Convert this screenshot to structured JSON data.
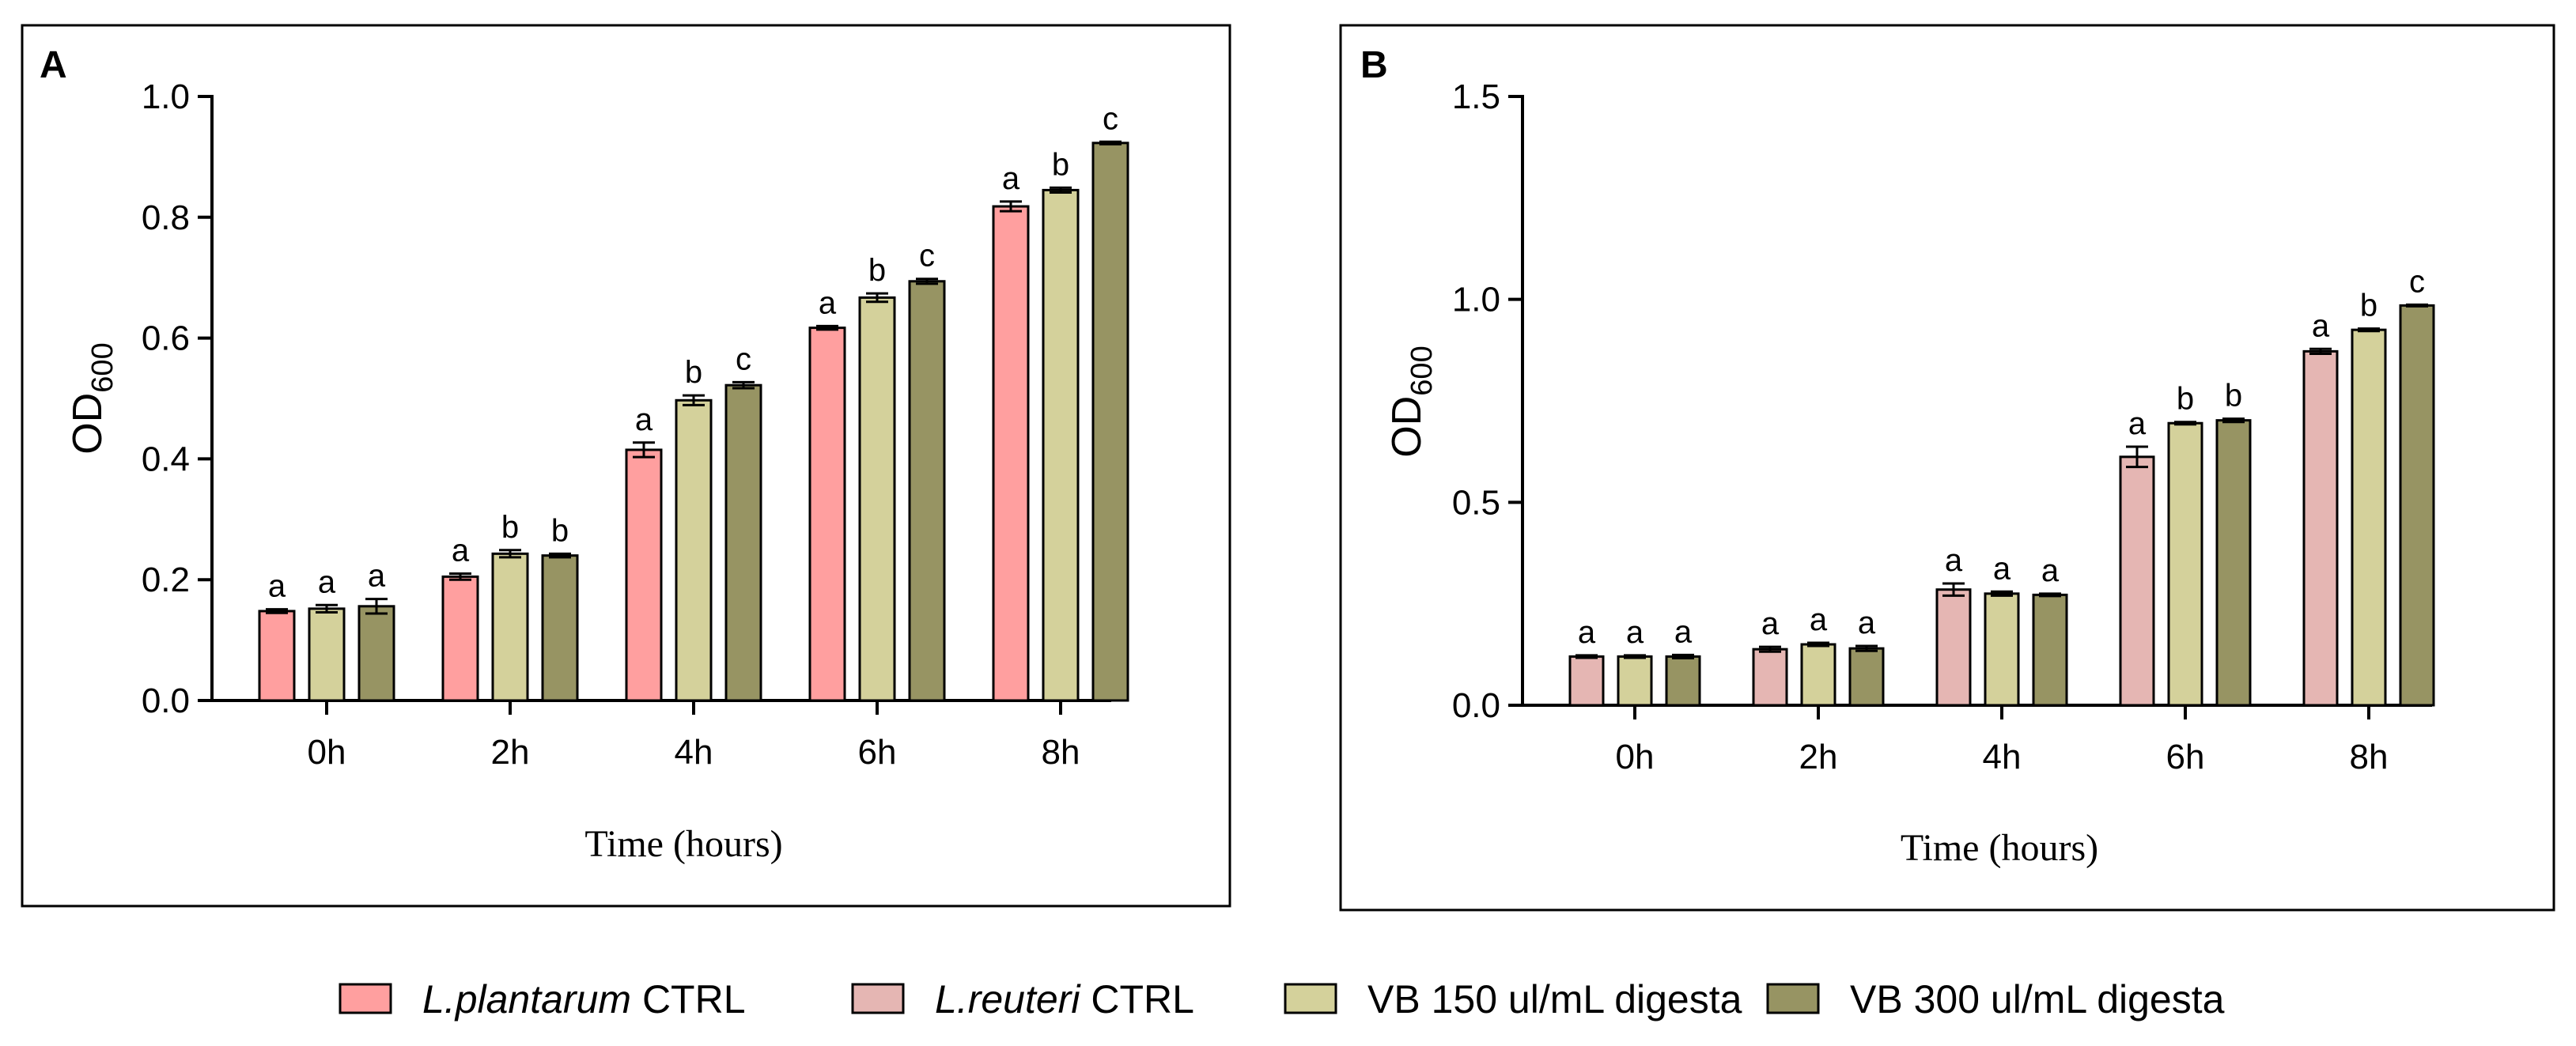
{
  "legend": [
    {
      "italic": "L.plantarum",
      "rest": " CTRL",
      "color": "#FF9F9F"
    },
    {
      "italic": "L.reuteri",
      "rest": " CTRL",
      "color": "#E5B6B3"
    },
    {
      "italic": "",
      "rest": "VB 150 ul/mL digesta",
      "color": "#D4D19B"
    },
    {
      "italic": "",
      "rest": "VB 300 ul/mL digesta",
      "color": "#979463"
    }
  ],
  "chart_data": [
    {
      "panel": "A",
      "type": "bar",
      "xlabel": "Time (hours)",
      "ylabel": {
        "main": "OD",
        "sub": "600"
      },
      "ylim": [
        0,
        1.0
      ],
      "yticks": [
        "0.0",
        "0.2",
        "0.4",
        "0.6",
        "0.8",
        "1.0"
      ],
      "ytick_values": [
        0,
        0.2,
        0.4,
        0.6,
        0.8,
        1.0
      ],
      "categories": [
        "0h",
        "2h",
        "4h",
        "6h",
        "8h"
      ],
      "series": [
        {
          "legend_index": 0,
          "values": [
            0.148,
            0.205,
            0.415,
            0.617,
            0.818
          ],
          "errors": [
            0.003,
            0.005,
            0.012,
            0.003,
            0.008
          ],
          "letters": [
            "a",
            "a",
            "a",
            "a",
            "a"
          ]
        },
        {
          "legend_index": 2,
          "values": [
            0.152,
            0.243,
            0.497,
            0.667,
            0.845
          ],
          "errors": [
            0.006,
            0.006,
            0.008,
            0.007,
            0.004
          ],
          "letters": [
            "a",
            "b",
            "b",
            "b",
            "b"
          ]
        },
        {
          "legend_index": 3,
          "values": [
            0.156,
            0.24,
            0.522,
            0.694,
            0.923
          ],
          "errors": [
            0.012,
            0.003,
            0.005,
            0.004,
            0.002
          ],
          "letters": [
            "a",
            "b",
            "c",
            "c",
            "c"
          ]
        }
      ]
    },
    {
      "panel": "B",
      "type": "bar",
      "xlabel": "Time (hours)",
      "ylabel": {
        "main": "OD",
        "sub": "600"
      },
      "ylim": [
        0,
        1.5
      ],
      "yticks": [
        "0.0",
        "0.5",
        "1.0",
        "1.5"
      ],
      "ytick_values": [
        0,
        0.5,
        1.0,
        1.5
      ],
      "categories": [
        "0h",
        "2h",
        "4h",
        "6h",
        "8h"
      ],
      "series": [
        {
          "legend_index": 1,
          "values": [
            0.12,
            0.138,
            0.285,
            0.612,
            0.872
          ],
          "errors": [
            0.003,
            0.006,
            0.015,
            0.025,
            0.006
          ],
          "letters": [
            "a",
            "a",
            "a",
            "a",
            "a"
          ]
        },
        {
          "legend_index": 2,
          "values": [
            0.12,
            0.15,
            0.275,
            0.695,
            0.925
          ],
          "errors": [
            0.003,
            0.004,
            0.005,
            0.003,
            0.003
          ],
          "letters": [
            "a",
            "a",
            "a",
            "b",
            "b"
          ]
        },
        {
          "legend_index": 3,
          "values": [
            0.12,
            0.14,
            0.272,
            0.702,
            0.985
          ],
          "errors": [
            0.004,
            0.006,
            0.003,
            0.004,
            0.002
          ],
          "letters": [
            "a",
            "a",
            "a",
            "b",
            "c"
          ]
        }
      ]
    }
  ]
}
